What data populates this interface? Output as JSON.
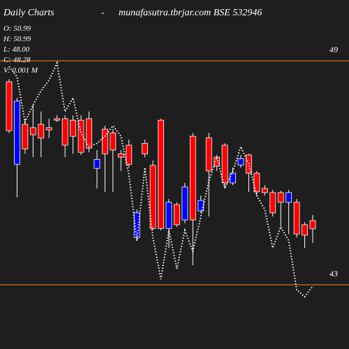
{
  "chart_data": {
    "type": "candlestick",
    "title": "Daily Charts",
    "separator": "-",
    "subtitle": "munafasutra.tbrjar.com BSE 532946",
    "info": [
      "O: 50.99",
      "H: 50.99",
      "L: 48.00",
      "C: 48.28",
      "V: 0.001 M"
    ],
    "up_color": "#0000ff",
    "down_color": "#ff0000",
    "grid_color": "#ff8c1a",
    "line_color": "#ffffff",
    "ylim": [
      41.28,
      50.63
    ],
    "yticks": [
      43,
      49
    ],
    "grid": true,
    "open": [
      48.44,
      46.23,
      47.3,
      47.21,
      47.3,
      47.21,
      47.45,
      47.45,
      47.41,
      47.41,
      47.45,
      46.12,
      47.17,
      47.07,
      46.51,
      46.74,
      44.27,
      46.79,
      46.2,
      47.41,
      44.51,
      45.15,
      44.74,
      46.98,
      44.98,
      46.94,
      46.42,
      46.74,
      45.73,
      46.21,
      46.48,
      45.99,
      45.58,
      45.47,
      45.47,
      45.21,
      45.21,
      44.61,
      44.72
    ],
    "high": [
      48.51,
      48.01,
      47.45,
      47.82,
      47.64,
      47.45,
      47.54,
      47.54,
      47.54,
      47.54,
      47.64,
      46.61,
      47.26,
      47.17,
      46.61,
      46.89,
      45.02,
      46.89,
      46.33,
      47.45,
      45.3,
      45.21,
      45.73,
      47.07,
      45.39,
      47.07,
      46.48,
      46.79,
      46.14,
      46.48,
      46.51,
      46.05,
      45.67,
      45.54,
      45.52,
      45.54,
      45.3,
      44.68,
      44.87
    ],
    "low": [
      47.07,
      45.34,
      46.51,
      46.42,
      46.42,
      46.93,
      47.36,
      46.42,
      46.51,
      46.48,
      46.55,
      45.58,
      45.49,
      45.49,
      46.05,
      46.14,
      44.18,
      46.42,
      44.46,
      44.46,
      43.99,
      44.55,
      44.65,
      43.52,
      44.93,
      44.83,
      46.05,
      45.58,
      45.67,
      46.14,
      45.49,
      45.39,
      45.39,
      44.83,
      44.55,
      44.36,
      44.27,
      43.99,
      44.12
    ],
    "close": [
      47.13,
      47.92,
      46.64,
      47.02,
      46.93,
      47.15,
      47.41,
      46.74,
      46.98,
      46.55,
      46.66,
      46.36,
      46.51,
      46.61,
      46.42,
      46.23,
      44.93,
      46.51,
      44.51,
      44.51,
      45.21,
      44.61,
      45.62,
      44.74,
      45.26,
      46.05,
      46.18,
      45.73,
      45.99,
      46.38,
      45.99,
      45.49,
      45.47,
      44.93,
      45.21,
      45.47,
      44.36,
      44.33,
      44.5
    ],
    "overlay": [
      48.85,
      48.57,
      47.36,
      47.82,
      48.2,
      48.48,
      48.94,
      47.64,
      48.01,
      47.07,
      46.7,
      46.79,
      46.98,
      47.26,
      46.98,
      45.95,
      44.18,
      46.14,
      44.27,
      43.15,
      44.46,
      43.43,
      44.46,
      43.9,
      44.83,
      45.77,
      46.42,
      45.58,
      46.05,
      46.7,
      46.23,
      45.39,
      45.02,
      43.99,
      44.55,
      44.18,
      42.87,
      42.68,
      42.96
    ]
  }
}
